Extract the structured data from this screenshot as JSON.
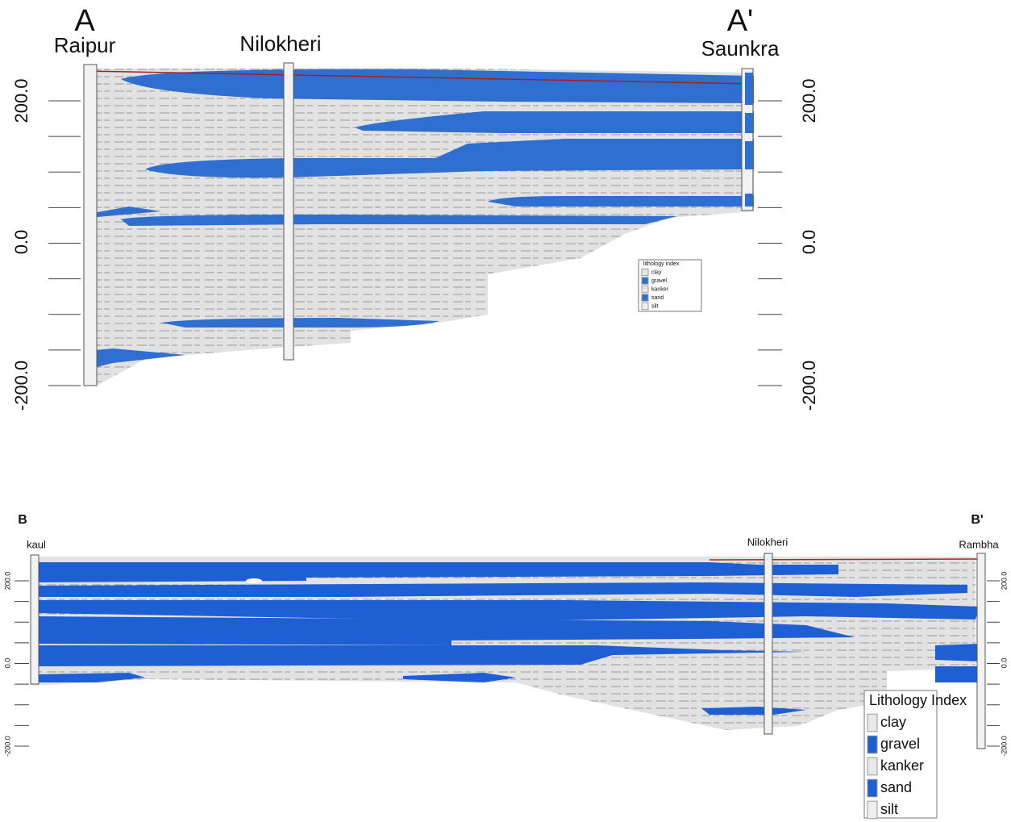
{
  "section_a": {
    "start_label": "A",
    "start_well": "Raipur",
    "mid_well": "Nilokheri",
    "end_label": "A'",
    "end_well": "Saunkra",
    "left_axis": [
      "200.0",
      "0.0",
      "-200.0"
    ],
    "right_axis": [
      "200.0",
      "0.0",
      "-200.0"
    ],
    "legend": {
      "title": "lithology index",
      "items": [
        "clay",
        "gravel",
        "kanker",
        "sand",
        "silt"
      ]
    }
  },
  "section_b": {
    "start_label": "B",
    "start_well": "kaul",
    "mid_well": "Nilokheri",
    "end_label": "B'",
    "end_well": "Rambha",
    "left_axis": [
      "200.0",
      "0.0",
      "-200.0"
    ],
    "right_axis": [
      "200.0",
      "0.0",
      "-200.0"
    ],
    "legend": {
      "title": "Lithology Index",
      "items": [
        "clay",
        "gravel",
        "kanker",
        "sand",
        "silt"
      ]
    }
  }
}
